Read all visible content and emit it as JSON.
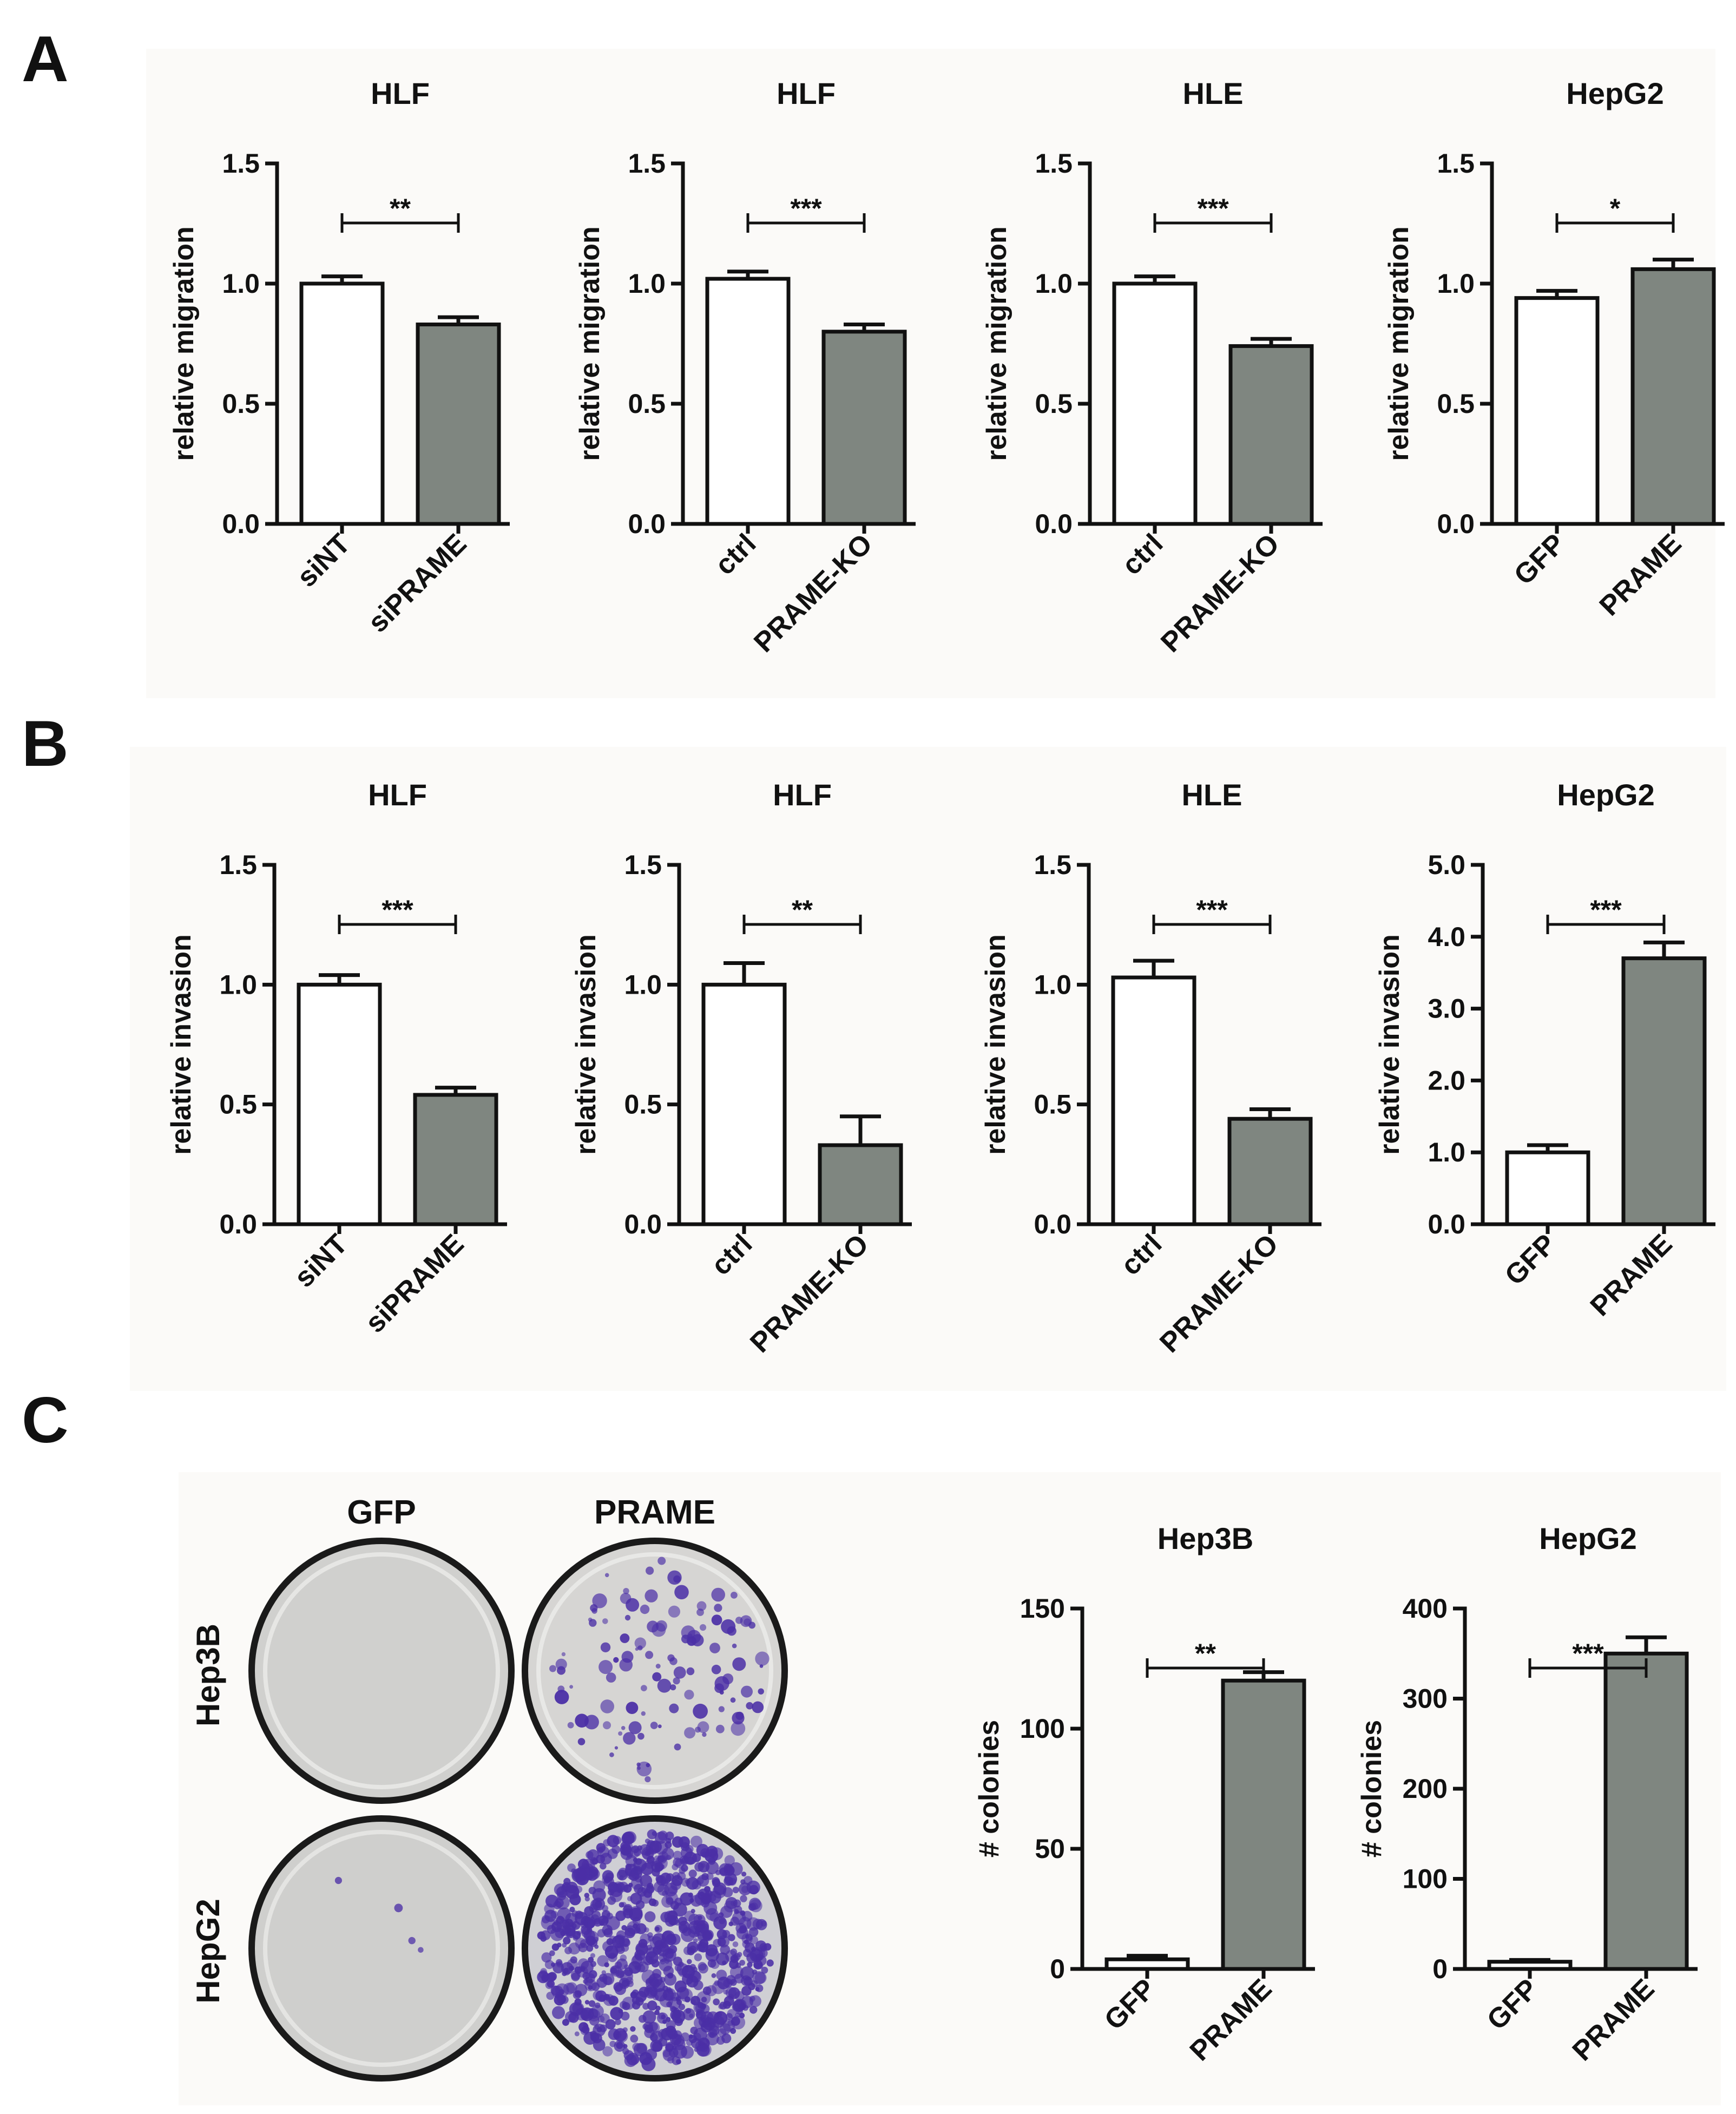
{
  "panels": {
    "A": {
      "letter": "A"
    },
    "B": {
      "letter": "B"
    },
    "C": {
      "letter": "C"
    }
  },
  "colors": {
    "bar_control": "#ffffff",
    "bar_treatment": "#7f8680",
    "stroke": "#111111",
    "plate_bg": "#d3d3d1",
    "colony": "#4b2fa6"
  },
  "plates": {
    "column_labels": [
      "GFP",
      "PRAME"
    ],
    "row_labels": [
      "Hep3B",
      "HepG2"
    ]
  },
  "chart_data": [
    {
      "id": "A1",
      "panel": "A",
      "type": "bar",
      "title": "HLF",
      "ylabel": "relative migration",
      "categories": [
        "siNT",
        "siPRAME"
      ],
      "values": [
        1.0,
        0.83
      ],
      "errors": [
        0.03,
        0.03
      ],
      "ylim": [
        0,
        1.5
      ],
      "yticks": [
        "0.0",
        "0.5",
        "1.0",
        "1.5"
      ],
      "significance": "**"
    },
    {
      "id": "A2",
      "panel": "A",
      "type": "bar",
      "title": "HLF",
      "ylabel": "relative migration",
      "categories": [
        "ctrl",
        "PRAME-KO"
      ],
      "values": [
        1.02,
        0.8
      ],
      "errors": [
        0.03,
        0.03
      ],
      "ylim": [
        0,
        1.5
      ],
      "yticks": [
        "0.0",
        "0.5",
        "1.0",
        "1.5"
      ],
      "significance": "***"
    },
    {
      "id": "A3",
      "panel": "A",
      "type": "bar",
      "title": "HLE",
      "ylabel": "relative migration",
      "categories": [
        "ctrl",
        "PRAME-KO"
      ],
      "values": [
        1.0,
        0.74
      ],
      "errors": [
        0.03,
        0.03
      ],
      "ylim": [
        0,
        1.5
      ],
      "yticks": [
        "0.0",
        "0.5",
        "1.0",
        "1.5"
      ],
      "significance": "***"
    },
    {
      "id": "A4",
      "panel": "A",
      "type": "bar",
      "title": "HepG2",
      "ylabel": "relative migration",
      "categories": [
        "GFP",
        "PRAME"
      ],
      "values": [
        0.94,
        1.06
      ],
      "errors": [
        0.03,
        0.04
      ],
      "ylim": [
        0,
        1.5
      ],
      "yticks": [
        "0.0",
        "0.5",
        "1.0",
        "1.5"
      ],
      "significance": "*"
    },
    {
      "id": "B1",
      "panel": "B",
      "type": "bar",
      "title": "HLF",
      "ylabel": "relative invasion",
      "categories": [
        "siNT",
        "siPRAME"
      ],
      "values": [
        1.0,
        0.54
      ],
      "errors": [
        0.04,
        0.03
      ],
      "ylim": [
        0,
        1.5
      ],
      "yticks": [
        "0.0",
        "0.5",
        "1.0",
        "1.5"
      ],
      "significance": "***"
    },
    {
      "id": "B2",
      "panel": "B",
      "type": "bar",
      "title": "HLF",
      "ylabel": "relative invasion",
      "categories": [
        "ctrl",
        "PRAME-KO"
      ],
      "values": [
        1.0,
        0.33
      ],
      "errors": [
        0.09,
        0.12
      ],
      "ylim": [
        0,
        1.5
      ],
      "yticks": [
        "0.0",
        "0.5",
        "1.0",
        "1.5"
      ],
      "significance": "**"
    },
    {
      "id": "B3",
      "panel": "B",
      "type": "bar",
      "title": "HLE",
      "ylabel": "relative invasion",
      "categories": [
        "ctrl",
        "PRAME-KO"
      ],
      "values": [
        1.03,
        0.44
      ],
      "errors": [
        0.07,
        0.04
      ],
      "ylim": [
        0,
        1.5
      ],
      "yticks": [
        "0.0",
        "0.5",
        "1.0",
        "1.5"
      ],
      "significance": "***"
    },
    {
      "id": "B4",
      "panel": "B",
      "type": "bar",
      "title": "HepG2",
      "ylabel": "relative invasion",
      "categories": [
        "GFP",
        "PRAME"
      ],
      "values": [
        1.0,
        3.7
      ],
      "errors": [
        0.1,
        0.22
      ],
      "ylim": [
        0,
        5
      ],
      "yticks": [
        "0.0",
        "1.0",
        "2.0",
        "3.0",
        "4.0",
        "5.0"
      ],
      "significance": "***"
    },
    {
      "id": "C1",
      "panel": "C",
      "type": "bar",
      "title": "Hep3B",
      "ylabel": "# colonies",
      "categories": [
        "GFP",
        "PRAME"
      ],
      "values": [
        4,
        120
      ],
      "errors": [
        1.5,
        3.5
      ],
      "ylim": [
        0,
        150
      ],
      "yticks": [
        "0",
        "50",
        "100",
        "150"
      ],
      "significance": "**"
    },
    {
      "id": "C2",
      "panel": "C",
      "type": "bar",
      "title": "HepG2",
      "ylabel": "# colonies",
      "categories": [
        "GFP",
        "PRAME"
      ],
      "values": [
        8,
        350
      ],
      "errors": [
        2,
        18
      ],
      "ylim": [
        0,
        400
      ],
      "yticks": [
        "0",
        "100",
        "200",
        "300",
        "400"
      ],
      "significance": "***"
    }
  ]
}
